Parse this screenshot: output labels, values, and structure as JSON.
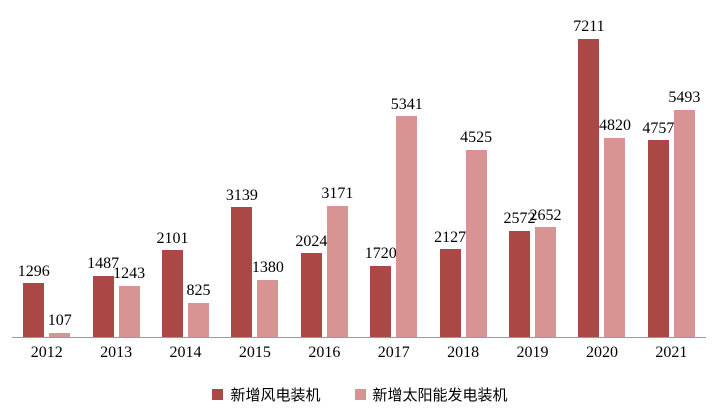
{
  "chart_data": {
    "type": "bar",
    "categories": [
      "2012",
      "2013",
      "2014",
      "2015",
      "2016",
      "2017",
      "2018",
      "2019",
      "2020",
      "2021"
    ],
    "series": [
      {
        "name": "新增风电装机",
        "color": "#AB4744",
        "values": [
          1296,
          1487,
          2101,
          3139,
          2024,
          1720,
          2127,
          2572,
          7211,
          4757
        ]
      },
      {
        "name": "新增太阳能发电装机",
        "color": "#D79492",
        "values": [
          107,
          1243,
          825,
          1380,
          3171,
          5341,
          4525,
          2652,
          4820,
          5493
        ]
      }
    ],
    "title": "",
    "xlabel": "",
    "ylabel": "",
    "ylim": [
      0,
      7600
    ],
    "grid": false,
    "y_axis_visible": false,
    "data_labels": true,
    "legend_position": "bottom",
    "axis_line_color": "#9B9B9B",
    "label_text_color": "#000000"
  }
}
